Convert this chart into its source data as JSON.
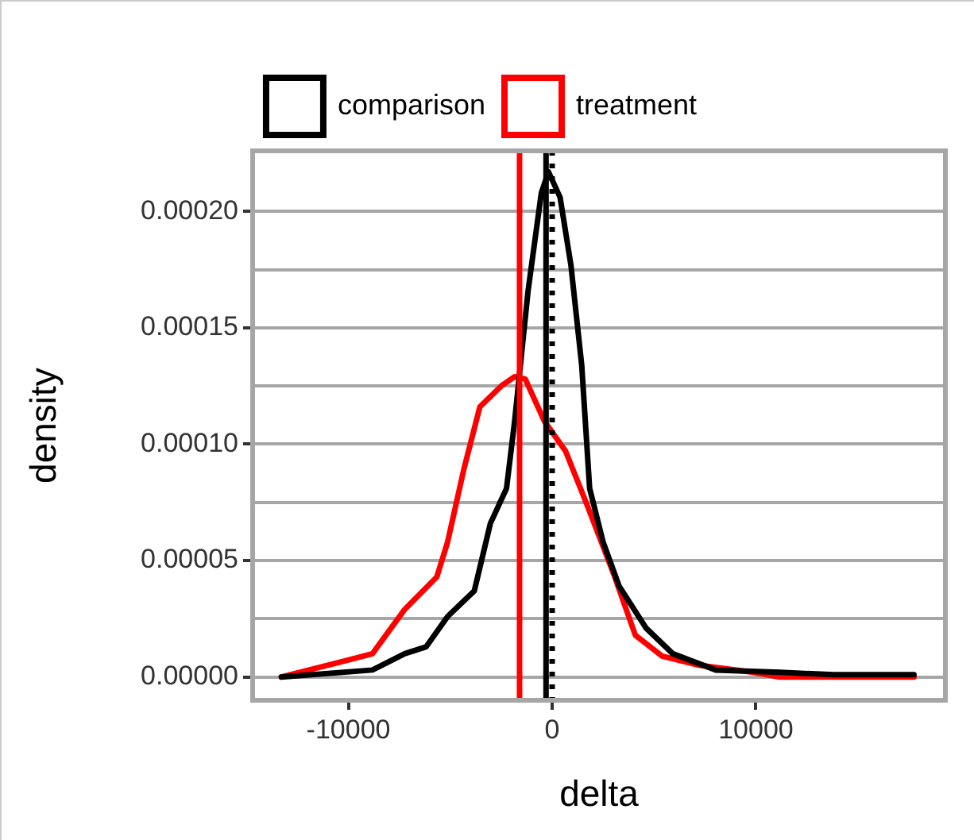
{
  "chart_data": {
    "type": "line",
    "xlabel": "delta",
    "ylabel": "density",
    "series": [
      {
        "name": "comparison",
        "color": "#000000",
        "x": [
          -13290,
          -8820,
          -7240,
          -6180,
          -5130,
          -3820,
          -3030,
          -2240,
          -1840,
          -1180,
          -530,
          -180,
          390,
          920,
          1450,
          1840,
          2500,
          3290,
          4610,
          5920,
          8030,
          11180,
          13820,
          17760
        ],
        "values": [
          0,
          3e-06,
          1e-05,
          1.3e-05,
          2.6e-05,
          3.7e-05,
          6.6e-05,
          8.1e-05,
          0.00011,
          0.000166,
          0.000208,
          0.000217,
          0.000206,
          0.000177,
          0.000134,
          8.1e-05,
          5.8e-05,
          3.9e-05,
          2.1e-05,
          1e-05,
          3e-06,
          2e-06,
          1e-06,
          1e-06
        ]
      },
      {
        "name": "treatment",
        "color": "#ff0000",
        "x": [
          -13290,
          -10130,
          -8820,
          -7240,
          -5660,
          -5130,
          -4340,
          -3550,
          -2500,
          -1840,
          -1320,
          -390,
          660,
          1710,
          3030,
          4080,
          5390,
          7240,
          9870,
          11180,
          17760
        ],
        "values": [
          0,
          7e-06,
          1e-05,
          2.9e-05,
          4.3e-05,
          5.8e-05,
          8.9e-05,
          0.000116,
          0.000125,
          0.000129,
          0.000128,
          0.00011,
          9.7e-05,
          7.4e-05,
          4.4e-05,
          1.8e-05,
          9e-06,
          5e-06,
          2e-06,
          0,
          0
        ]
      }
    ],
    "ref_lines": [
      {
        "axis": "x",
        "value": -300,
        "color": "#000000",
        "line_style": "solid"
      },
      {
        "axis": "x",
        "value": 0,
        "color": "#000000",
        "line_style": "dotted"
      },
      {
        "axis": "x",
        "value": -1600,
        "color": "#ff0000",
        "line_style": "solid"
      }
    ],
    "xlim": [
      -14700,
      19300
    ],
    "xticks": [
      -10000,
      0,
      10000
    ],
    "ylim": [
      -1e-05,
      0.000226
    ],
    "yticks": [
      {
        "value": 0,
        "label": "0.00000"
      },
      {
        "value": 2.5e-05,
        "label": null
      },
      {
        "value": 5e-05,
        "label": "0.00005"
      },
      {
        "value": 7.5e-05,
        "label": null
      },
      {
        "value": 0.0001,
        "label": "0.00010"
      },
      {
        "value": 0.000125,
        "label": null
      },
      {
        "value": 0.00015,
        "label": "0.00015"
      },
      {
        "value": 0.000175,
        "label": null
      },
      {
        "value": 0.0002,
        "label": "0.00020"
      }
    ],
    "grid": "y",
    "legend": "top",
    "marker": "none",
    "line_style": "solid"
  }
}
